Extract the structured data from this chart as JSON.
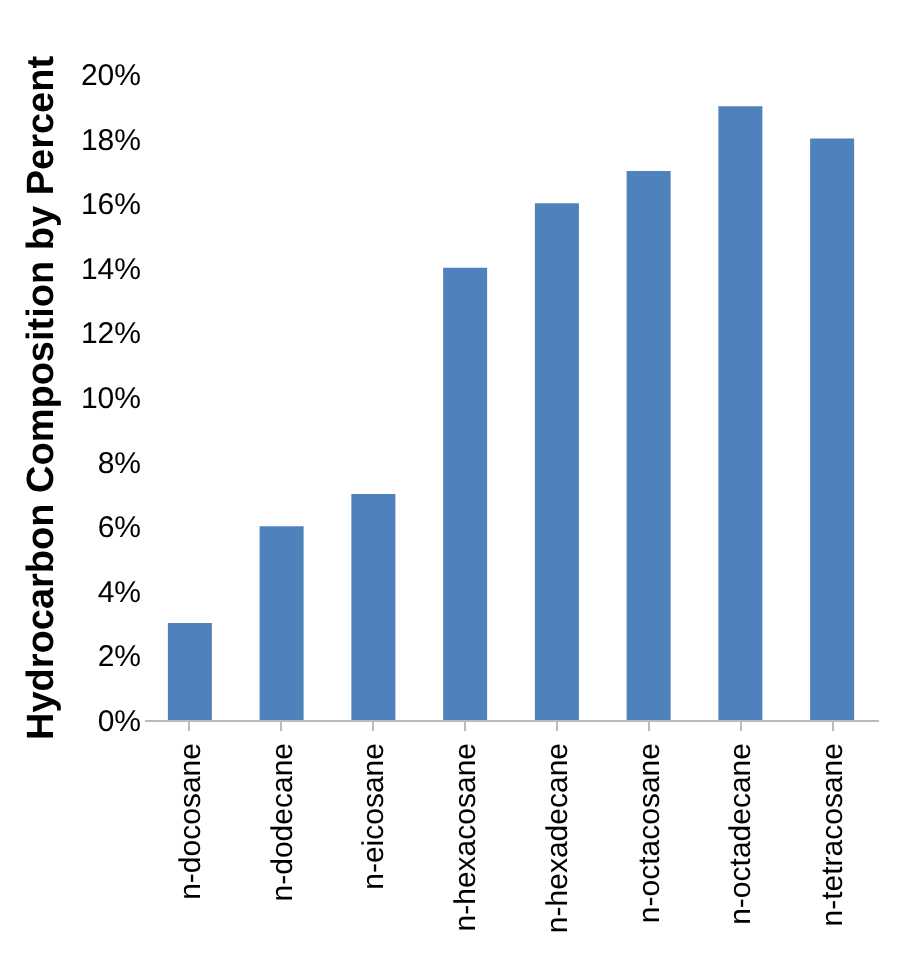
{
  "chart_data": {
    "type": "bar",
    "ylabel": "Hydrocarbon Composition by Percent",
    "categories": [
      "n-docosane",
      "n-dodecane",
      "n-eicosane",
      "n-hexacosane",
      "n-hexadecane",
      "n-octacosane",
      "n-octadecane",
      "n-tetracosane"
    ],
    "values": [
      3,
      6,
      7,
      14,
      16,
      17,
      19,
      18
    ],
    "color": "#4f81bd",
    "ylim": [
      0,
      20
    ],
    "yticks": [
      {
        "value": 0,
        "label": "0%"
      },
      {
        "value": 2,
        "label": "2%"
      },
      {
        "value": 4,
        "label": "4%"
      },
      {
        "value": 6,
        "label": "6%"
      },
      {
        "value": 8,
        "label": "8%"
      },
      {
        "value": 10,
        "label": "10%"
      },
      {
        "value": 12,
        "label": "12%"
      },
      {
        "value": 14,
        "label": "14%"
      },
      {
        "value": 16,
        "label": "16%"
      },
      {
        "value": 18,
        "label": "18%"
      },
      {
        "value": 20,
        "label": "20%"
      }
    ],
    "grid": false
  }
}
